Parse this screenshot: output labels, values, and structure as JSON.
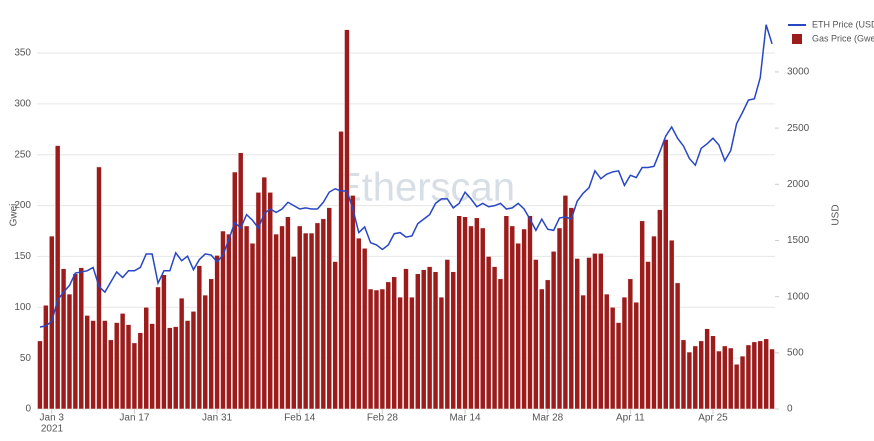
{
  "chart_data": {
    "type": "bar_line",
    "categories": [
      null,
      null,
      "Jan 3",
      null,
      null,
      null,
      null,
      null,
      null,
      null,
      null,
      null,
      null,
      null,
      null,
      null,
      "Jan 17",
      null,
      null,
      null,
      null,
      null,
      null,
      null,
      null,
      null,
      null,
      null,
      null,
      null,
      "Jan 31",
      null,
      null,
      null,
      null,
      null,
      null,
      null,
      null,
      null,
      null,
      null,
      null,
      null,
      "Feb 14",
      null,
      null,
      null,
      null,
      null,
      null,
      null,
      null,
      null,
      null,
      null,
      null,
      null,
      "Feb 28",
      null,
      null,
      null,
      null,
      null,
      null,
      null,
      null,
      null,
      null,
      null,
      null,
      null,
      "Mar 14",
      null,
      null,
      null,
      null,
      null,
      null,
      null,
      null,
      null,
      null,
      null,
      null,
      null,
      "Mar 28",
      null,
      null,
      null,
      null,
      null,
      null,
      null,
      null,
      null,
      null,
      null,
      null,
      null,
      "Apr 11",
      null,
      null,
      null,
      null,
      null,
      null,
      null,
      null,
      null,
      null,
      null,
      null,
      null,
      "Apr 25",
      null,
      null,
      null,
      null,
      null,
      null,
      null,
      null,
      null,
      null
    ],
    "x_sub_label": "2021",
    "ylabel": "Gwei",
    "y2label": "USD",
    "watermark": "Etherscan",
    "series": [
      {
        "name": "Gas Price (Gwei)",
        "type": "bar",
        "color": "#9c1c1c",
        "values": [
          67,
          102,
          170,
          259,
          138,
          113,
          133,
          139,
          92,
          87,
          238,
          87,
          68,
          85,
          94,
          83,
          65,
          75,
          100,
          84,
          120,
          132,
          80,
          81,
          109,
          87,
          96,
          141,
          112,
          128,
          151,
          175,
          172,
          233,
          252,
          180,
          163,
          213,
          228,
          213,
          172,
          180,
          189,
          150,
          180,
          173,
          173,
          183,
          187,
          198,
          145,
          273,
          373,
          210,
          168,
          158,
          118,
          117,
          118,
          125,
          130,
          110,
          138,
          110,
          133,
          137,
          140,
          135,
          110,
          147,
          135,
          190,
          189,
          180,
          188,
          178,
          150,
          140,
          128,
          190,
          180,
          163,
          177,
          190,
          147,
          118,
          127,
          155,
          178,
          210,
          198,
          148,
          112,
          149,
          153,
          153,
          113,
          100,
          85,
          110,
          128,
          105,
          185,
          145,
          170,
          196,
          265,
          166,
          124,
          68,
          56,
          62,
          67,
          79,
          72,
          57,
          62,
          60,
          44,
          52,
          63,
          66,
          67,
          69,
          59
        ]
      },
      {
        "name": "ETH Price (USD)",
        "type": "line",
        "axis": "y2",
        "color": "#2747c4",
        "values": [
          730,
          740,
          780,
          970,
          1040,
          1100,
          1210,
          1220,
          1230,
          1260,
          1090,
          1040,
          1130,
          1220,
          1170,
          1230,
          1230,
          1260,
          1380,
          1380,
          1120,
          1230,
          1230,
          1390,
          1320,
          1360,
          1240,
          1330,
          1380,
          1370,
          1310,
          1370,
          1510,
          1660,
          1610,
          1730,
          1680,
          1610,
          1740,
          1780,
          1750,
          1780,
          1840,
          1810,
          1780,
          1790,
          1780,
          1780,
          1840,
          1930,
          1960,
          1940,
          1940,
          1780,
          1570,
          1620,
          1480,
          1460,
          1420,
          1460,
          1560,
          1570,
          1530,
          1540,
          1650,
          1690,
          1730,
          1830,
          1870,
          1870,
          1790,
          1830,
          1930,
          1870,
          1800,
          1830,
          1800,
          1810,
          1830,
          1780,
          1790,
          1830,
          1780,
          1690,
          1590,
          1690,
          1600,
          1590,
          1700,
          1710,
          1690,
          1850,
          1920,
          1970,
          2120,
          2050,
          2090,
          2110,
          2120,
          1990,
          2080,
          2060,
          2150,
          2150,
          2160,
          2290,
          2430,
          2510,
          2410,
          2340,
          2230,
          2170,
          2320,
          2360,
          2410,
          2350,
          2210,
          2300,
          2540,
          2640,
          2750,
          2760,
          2950,
          3420,
          3250
        ]
      }
    ],
    "ylim": [
      0,
      380
    ],
    "yticks": [
      0,
      50,
      100,
      150,
      200,
      250,
      300,
      350
    ],
    "y2lim": [
      0,
      3440
    ],
    "y2ticks": [
      0,
      500,
      1000,
      1500,
      2000,
      2500,
      3000
    ],
    "grid": true,
    "legend": "top-right"
  }
}
